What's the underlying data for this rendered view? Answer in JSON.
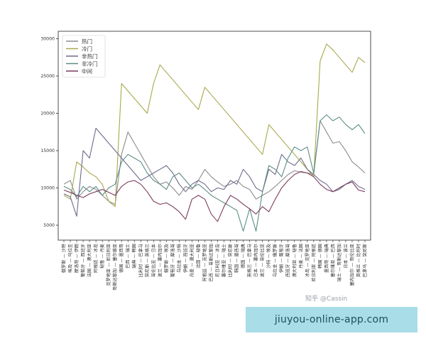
{
  "chart_data": {
    "type": "line",
    "ylim": [
      3000,
      31000
    ],
    "yticks": [
      5000,
      10000,
      15000,
      20000,
      25000,
      30000
    ],
    "legend_position": "top-left",
    "grid": false,
    "x_labels": [
      "俄罗斯 — 沙特",
      "埃及 — 乌拉圭",
      "摩洛哥 — 伊朗",
      "葡萄牙 — 西班牙",
      "法国 — 澳大利亚",
      "阿根廷 — 冰岛",
      "秘鲁 — 丹麦",
      "克罗地亚 — 尼日利亚",
      "哥斯达黎加 — 塞尔维亚",
      "德国 — 墨西哥",
      "巴西 — 瑞士",
      "瑞典 — 韩国",
      "比利时 — 巴拿马",
      "突尼斯 — 英格兰",
      "哥伦比亚 — 日本",
      "波兰 — 塞内加尔",
      "俄罗斯 — 埃及",
      "葡萄牙 — 摩洛哥",
      "乌拉圭 — 沙特",
      "伊朗 — 西班牙",
      "丹麦 — 澳大利亚",
      "法国 — 秘鲁",
      "阿根廷 — 克罗地亚",
      "巴西 — 哥斯达黎加",
      "尼日利亚 — 冰岛",
      "塞尔维亚 — 瑞士",
      "比利时 — 突尼斯",
      "韩国 — 墨西哥",
      "德国 — 瑞典",
      "英格兰 — 巴拿马",
      "日本 — 塞内加尔",
      "波兰 — 哥伦比亚",
      "沙特 — 埃及",
      "乌拉圭 — 俄罗斯",
      "伊朗 — 葡萄牙",
      "西班牙 — 摩洛哥",
      "澳大利亚 — 秘鲁",
      "丹麦 — 法国",
      "冰岛 — 克罗地亚",
      "尼日利亚 — 阿根廷",
      "韩国 — 德国",
      "墨西哥 — 瑞典",
      "塞尔维亚 — 巴西",
      "瑞士 — 哥斯达黎加",
      "日本 — 波兰",
      "塞内加尔 — 哥伦比亚",
      "英格兰 — 比利时",
      "巴拿马 — 突尼斯"
    ],
    "series": [
      {
        "name": "热门",
        "color": "#8c8c8c",
        "values": [
          10500,
          11000,
          8500,
          9500,
          10200,
          9800,
          9000,
          8200,
          7800,
          14500,
          17500,
          16000,
          14500,
          13000,
          11500,
          10500,
          10800,
          10000,
          9000,
          10200,
          9800,
          11000,
          12500,
          11500,
          10800,
          10200,
          10500,
          11000,
          10200,
          9800,
          8500,
          9000,
          9500,
          10200,
          11000,
          11800,
          12300,
          12100,
          12000,
          11800,
          19000,
          17500,
          16000,
          16200,
          15000,
          13500,
          12800,
          12000
        ]
      },
      {
        "name": "冷门",
        "color": "#a8a84c",
        "values": [
          9000,
          8500,
          13500,
          12800,
          12000,
          11500,
          10500,
          8200,
          7500,
          24000,
          23000,
          22000,
          21000,
          20000,
          24000,
          26500,
          25500,
          24500,
          23500,
          22500,
          21500,
          20500,
          23500,
          22500,
          21500,
          20500,
          19500,
          18500,
          17500,
          16500,
          15500,
          14500,
          18500,
          17500,
          16500,
          15500,
          14500,
          13500,
          12500,
          11500,
          27000,
          29300,
          28500,
          27500,
          26500,
          25500,
          27500,
          26800
        ]
      },
      {
        "name": "非热门",
        "color": "#6b6b8c",
        "values": [
          9200,
          8800,
          6200,
          15000,
          14000,
          18000,
          17000,
          16000,
          15000,
          14000,
          13000,
          12000,
          11000,
          11500,
          12000,
          12500,
          13000,
          12000,
          10500,
          9500,
          10500,
          11000,
          10500,
          9500,
          10000,
          9800,
          11000,
          10500,
          12500,
          11500,
          10000,
          9500,
          12500,
          11800,
          14500,
          13500,
          13000,
          14000,
          12500,
          11800,
          11000,
          10500,
          9500,
          9800,
          10500,
          11000,
          10200,
          9800
        ]
      },
      {
        "name": "非冷门",
        "color": "#5c8c84",
        "values": [
          10200,
          9800,
          8800,
          10200,
          9500,
          10200,
          9000,
          10000,
          10500,
          13500,
          14500,
          14000,
          13500,
          12000,
          11000,
          10500,
          9800,
          11500,
          12000,
          11000,
          10000,
          10500,
          9800,
          9000,
          8500,
          8000,
          7500,
          7000,
          4200,
          7200,
          4200,
          9500,
          13000,
          12500,
          11500,
          14000,
          15500,
          15000,
          15500,
          12000,
          19000,
          19800,
          19000,
          19500,
          18500,
          17800,
          18500,
          17300
        ]
      },
      {
        "name": "中间",
        "color": "#7c3c5c",
        "values": [
          9700,
          9400,
          9000,
          8700,
          9200,
          9500,
          9800,
          9400,
          9000,
          10200,
          10800,
          11000,
          10500,
          9500,
          8200,
          7800,
          8000,
          7500,
          6800,
          5800,
          8500,
          9000,
          8500,
          6500,
          5500,
          7500,
          9000,
          8500,
          7800,
          7200,
          6500,
          7500,
          6800,
          8500,
          10000,
          11000,
          11800,
          12200,
          12000,
          11500,
          10500,
          9800,
          9500,
          10000,
          10500,
          10800,
          9700,
          9500
        ]
      }
    ]
  },
  "watermark": {
    "text": "知乎 @Cassin"
  },
  "site_banner": {
    "text": "jiuyou-online-app.com"
  }
}
